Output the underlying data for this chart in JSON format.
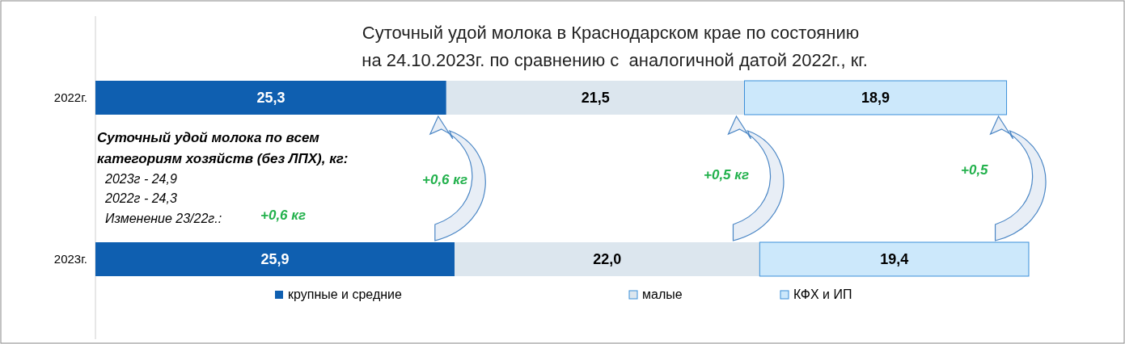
{
  "chart_data": {
    "type": "bar",
    "orientation": "horizontal",
    "stacked": true,
    "title": "Суточный удой молока в Краснодарском крае по состоянию\nна 24.10.2023г. по сравнению с  аналогичной датой 2022г., кг.",
    "categories": [
      "2022г.",
      "2023г."
    ],
    "series": [
      {
        "name": "крупные и средние",
        "color": "#0f5fb0",
        "values": [
          25.3,
          25.9
        ],
        "value_labels": [
          "25,3",
          "25,9"
        ]
      },
      {
        "name": "малые",
        "color": "#dce6ee",
        "values": [
          21.5,
          22.0
        ],
        "value_labels": [
          "21,5",
          "22,0"
        ]
      },
      {
        "name": "КФХ и ИП",
        "color": "#cce8fb",
        "values": [
          18.9,
          19.4
        ],
        "value_labels": [
          "18,9",
          "19,4"
        ]
      }
    ],
    "legend": "bottom",
    "annotations": [
      "Суточный удой молока по всем\nкатегориям хозяйств (без ЛПХ), кг:",
      "2023г  -  24,9",
      "2022г -  24,3",
      "Изменение 23/22г.:",
      "+0,6 кг",
      "+0,6 кг",
      "+0,5 кг",
      "+0,5"
    ]
  }
}
